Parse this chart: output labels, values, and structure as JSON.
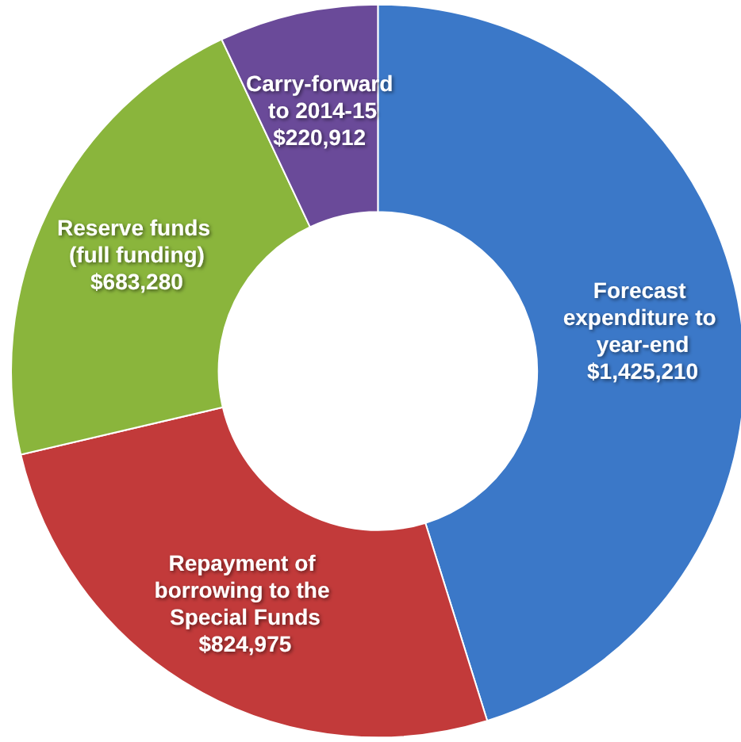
{
  "chart_data": {
    "type": "donut",
    "categories": [
      "Forecast expenditure to year-end",
      "Repayment of borrowing to the Special Funds",
      "Reserve funds (full funding)",
      "Carry-forward to 2014-15"
    ],
    "values": [
      1425210,
      824975,
      683280,
      220912
    ],
    "value_labels": [
      "$1,425,210",
      "$824,975",
      "$683,280",
      "$220,912"
    ],
    "colors": [
      "#3b78c8",
      "#c23a3a",
      "#8ab53c",
      "#6a4a99"
    ],
    "legend": false
  }
}
